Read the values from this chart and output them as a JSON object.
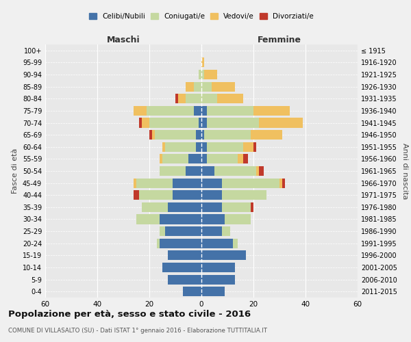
{
  "age_groups": [
    "0-4",
    "5-9",
    "10-14",
    "15-19",
    "20-24",
    "25-29",
    "30-34",
    "35-39",
    "40-44",
    "45-49",
    "50-54",
    "55-59",
    "60-64",
    "65-69",
    "70-74",
    "75-79",
    "80-84",
    "85-89",
    "90-94",
    "95-99",
    "100+"
  ],
  "birth_years": [
    "2011-2015",
    "2006-2010",
    "2001-2005",
    "1996-2000",
    "1991-1995",
    "1986-1990",
    "1981-1985",
    "1976-1980",
    "1971-1975",
    "1966-1970",
    "1961-1965",
    "1956-1960",
    "1951-1955",
    "1946-1950",
    "1941-1945",
    "1936-1940",
    "1931-1935",
    "1926-1930",
    "1921-1925",
    "1916-1920",
    "≤ 1915"
  ],
  "maschi": {
    "celibi": [
      7,
      13,
      15,
      13,
      16,
      14,
      16,
      13,
      11,
      11,
      6,
      5,
      2,
      2,
      1,
      3,
      0,
      0,
      0,
      0,
      0
    ],
    "coniugati": [
      0,
      0,
      0,
      0,
      1,
      2,
      9,
      10,
      13,
      14,
      10,
      10,
      12,
      16,
      19,
      18,
      6,
      3,
      1,
      0,
      0
    ],
    "vedovi": [
      0,
      0,
      0,
      0,
      0,
      0,
      0,
      0,
      0,
      1,
      0,
      1,
      1,
      1,
      3,
      5,
      3,
      3,
      0,
      0,
      0
    ],
    "divorziati": [
      0,
      0,
      0,
      0,
      0,
      0,
      0,
      0,
      2,
      0,
      0,
      0,
      0,
      1,
      1,
      0,
      1,
      0,
      0,
      0,
      0
    ]
  },
  "femmine": {
    "nubili": [
      9,
      13,
      13,
      17,
      12,
      8,
      9,
      8,
      8,
      8,
      5,
      2,
      2,
      1,
      2,
      2,
      0,
      0,
      0,
      0,
      0
    ],
    "coniugate": [
      0,
      0,
      0,
      0,
      2,
      3,
      10,
      11,
      17,
      22,
      16,
      12,
      14,
      18,
      20,
      18,
      6,
      4,
      1,
      0,
      0
    ],
    "vedove": [
      0,
      0,
      0,
      0,
      0,
      0,
      0,
      0,
      0,
      1,
      1,
      2,
      4,
      12,
      17,
      14,
      10,
      9,
      5,
      1,
      0
    ],
    "divorziate": [
      0,
      0,
      0,
      0,
      0,
      0,
      0,
      1,
      0,
      1,
      2,
      2,
      1,
      0,
      0,
      0,
      0,
      0,
      0,
      0,
      0
    ]
  },
  "colors": {
    "celibi": "#4472a8",
    "coniugati": "#c5d8a0",
    "vedovi": "#f0c060",
    "divorziati": "#c0392b"
  },
  "title": "Popolazione per età, sesso e stato civile - 2016",
  "subtitle": "COMUNE DI VILLASALTO (SU) - Dati ISTAT 1° gennaio 2016 - Elaborazione TUTTITALIA.IT",
  "xlabel_left": "Maschi",
  "xlabel_right": "Femmine",
  "ylabel_left": "Fasce di età",
  "ylabel_right": "Anni di nascita",
  "xlim": 60,
  "bg_color": "#f0f0f0",
  "plot_bg": "#e8e8e8"
}
